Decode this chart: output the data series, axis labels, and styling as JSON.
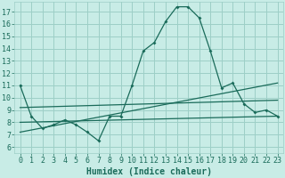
{
  "xlabel": "Humidex (Indice chaleur)",
  "bg_color": "#c8ece6",
  "grid_color": "#9dcfc7",
  "line_color": "#1a6b5a",
  "xlim": [
    -0.5,
    23.5
  ],
  "ylim": [
    5.5,
    17.8
  ],
  "yticks": [
    6,
    7,
    8,
    9,
    10,
    11,
    12,
    13,
    14,
    15,
    16,
    17
  ],
  "xticks": [
    0,
    1,
    2,
    3,
    4,
    5,
    6,
    7,
    8,
    9,
    10,
    11,
    12,
    13,
    14,
    15,
    16,
    17,
    18,
    19,
    20,
    21,
    22,
    23
  ],
  "series1_x": [
    0,
    1,
    2,
    3,
    4,
    5,
    6,
    7,
    8,
    9,
    10,
    11,
    12,
    13,
    14,
    15,
    16,
    17,
    18,
    19,
    20,
    21,
    22,
    23
  ],
  "series1_y": [
    11.0,
    8.5,
    7.5,
    7.8,
    8.2,
    7.8,
    7.2,
    6.5,
    8.5,
    8.5,
    11.0,
    13.8,
    14.5,
    16.2,
    17.4,
    17.4,
    16.5,
    13.8,
    10.8,
    11.2,
    9.5,
    8.8,
    9.0,
    8.5
  ],
  "series2_x": [
    0,
    23
  ],
  "series2_y": [
    9.2,
    9.8
  ],
  "series3_x": [
    0,
    23
  ],
  "series3_y": [
    8.0,
    8.5
  ],
  "series4_x": [
    0,
    23
  ],
  "series4_y": [
    7.2,
    11.2
  ],
  "tick_fontsize": 6.0,
  "xlabel_fontsize": 7.0
}
